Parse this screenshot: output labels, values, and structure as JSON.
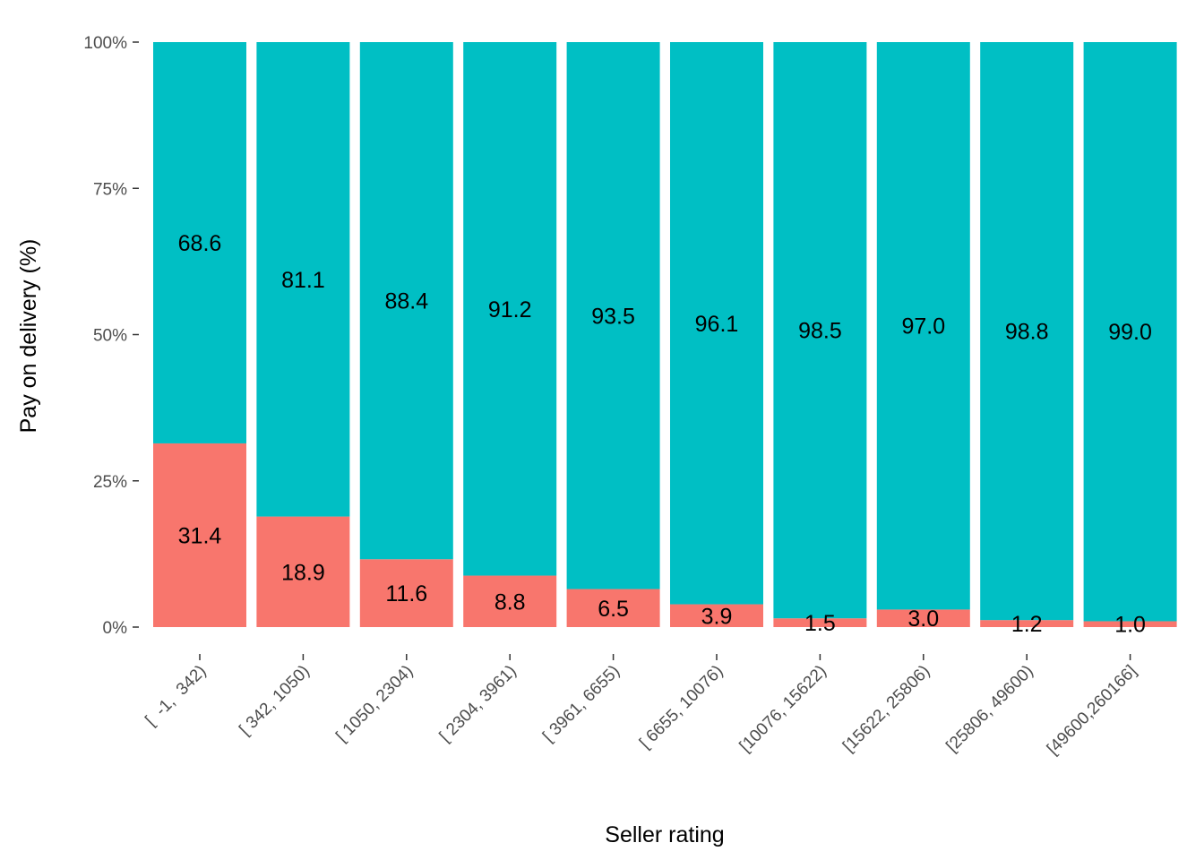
{
  "chart_data": {
    "type": "bar",
    "stacked": true,
    "normalized": true,
    "xlabel": "Seller rating",
    "ylabel": "Pay on delivery  (%)",
    "ylim": [
      0,
      100
    ],
    "yticks": [
      "0%",
      "25%",
      "50%",
      "75%",
      "100%"
    ],
    "ytick_values": [
      0,
      25,
      50,
      75,
      100
    ],
    "categories": [
      "[  -1,  342)",
      "[ 342, 1050)",
      "[ 1050, 2304)",
      "[ 2304, 3961)",
      "[ 3961, 6655)",
      "[ 6655, 10076)",
      "[10076, 15622)",
      "[15622, 25806)",
      "[25806, 49600)",
      "[49600,260166]"
    ],
    "series": [
      {
        "color": "#F8766D",
        "values": [
          31.4,
          18.9,
          11.6,
          8.8,
          6.5,
          3.9,
          1.5,
          3.0,
          1.2,
          1.0
        ]
      },
      {
        "color": "#00BFC4",
        "values": [
          68.6,
          81.1,
          88.4,
          91.2,
          93.5,
          96.1,
          98.5,
          97.0,
          98.8,
          99.0
        ]
      }
    ],
    "labels_bottom": [
      "31.4",
      "18.9",
      "11.6",
      "8.8",
      "6.5",
      "3.9",
      "1.5",
      "3.0",
      "1.2",
      "1.0"
    ],
    "labels_top": [
      "68.6",
      "81.1",
      "88.4",
      "91.2",
      "93.5",
      "96.1",
      "98.5",
      "97.0",
      "98.8",
      "99.0"
    ],
    "grid": false,
    "legend": "none"
  }
}
